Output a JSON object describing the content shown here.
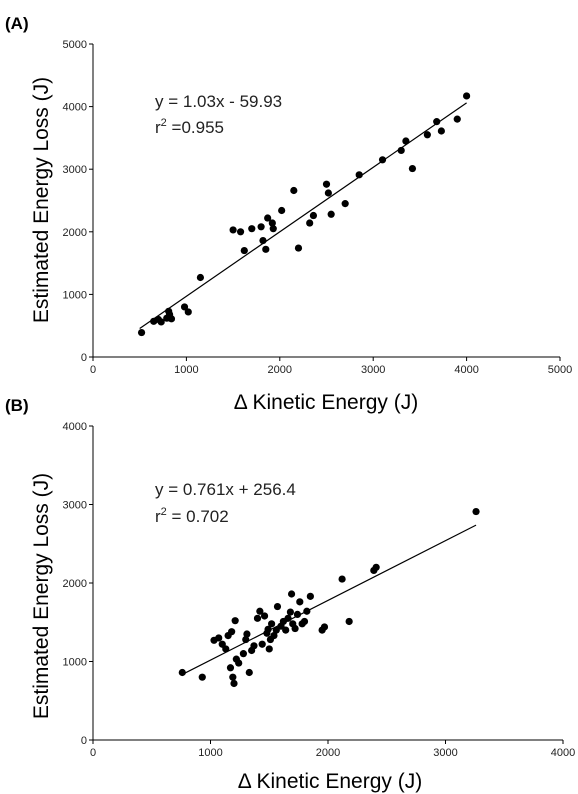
{
  "chart_data": [
    {
      "panel": "(A)",
      "type": "scatter",
      "xlabel": "Δ Kinetic Energy (J)",
      "ylabel": "Estimated Energy Loss (J)",
      "xlim": [
        0,
        5000
      ],
      "ylim": [
        0,
        5000
      ],
      "xticks": [
        "0",
        "1000",
        "2000",
        "3000",
        "4000",
        "5000"
      ],
      "yticks": [
        "0",
        "1000",
        "2000",
        "3000",
        "4000",
        "5000"
      ],
      "grid": false,
      "annotation_line1": "y = 1.03x - 59.93",
      "annotation_line2_prefix": "r",
      "annotation_line2_sup": "2",
      "annotation_line2_suffix": " =0.955",
      "fit": {
        "slope": 1.03,
        "intercept": -59.93,
        "x_from": 500,
        "x_to": 4000
      },
      "points": [
        [
          520,
          390
        ],
        [
          650,
          570
        ],
        [
          700,
          600
        ],
        [
          730,
          560
        ],
        [
          790,
          620
        ],
        [
          810,
          730
        ],
        [
          820,
          680
        ],
        [
          830,
          620
        ],
        [
          840,
          610
        ],
        [
          980,
          800
        ],
        [
          1020,
          720
        ],
        [
          1150,
          1270
        ],
        [
          1500,
          2030
        ],
        [
          1580,
          2000
        ],
        [
          1620,
          1700
        ],
        [
          1700,
          2050
        ],
        [
          1800,
          2080
        ],
        [
          1820,
          1860
        ],
        [
          1850,
          1720
        ],
        [
          1870,
          2220
        ],
        [
          1920,
          2140
        ],
        [
          1930,
          2050
        ],
        [
          2020,
          2340
        ],
        [
          2150,
          2660
        ],
        [
          2200,
          1740
        ],
        [
          2320,
          2140
        ],
        [
          2360,
          2260
        ],
        [
          2500,
          2760
        ],
        [
          2520,
          2620
        ],
        [
          2550,
          2280
        ],
        [
          2700,
          2450
        ],
        [
          2850,
          2910
        ],
        [
          3100,
          3150
        ],
        [
          3300,
          3300
        ],
        [
          3350,
          3450
        ],
        [
          3420,
          3010
        ],
        [
          3580,
          3550
        ],
        [
          3680,
          3760
        ],
        [
          3730,
          3610
        ],
        [
          3900,
          3800
        ],
        [
          4000,
          4170
        ]
      ]
    },
    {
      "panel": "(B)",
      "type": "scatter",
      "xlabel": "Δ Kinetic Energy (J)",
      "ylabel": "Estimated Energy Loss (J)",
      "xlim": [
        0,
        4000
      ],
      "ylim": [
        0,
        4000
      ],
      "xticks": [
        "0",
        "1000",
        "2000",
        "3000",
        "4000"
      ],
      "yticks": [
        "0",
        "1000",
        "2000",
        "3000",
        "4000"
      ],
      "grid": false,
      "annotation_line1": "y = 0.761x + 256.4",
      "annotation_line2_prefix": "r",
      "annotation_line2_sup": "2",
      "annotation_line2_suffix": " = 0.702",
      "fit": {
        "slope": 0.761,
        "intercept": 256.4,
        "x_from": 760,
        "x_to": 3260
      },
      "points": [
        [
          760,
          860
        ],
        [
          930,
          800
        ],
        [
          1030,
          1270
        ],
        [
          1070,
          1300
        ],
        [
          1100,
          1220
        ],
        [
          1130,
          1160
        ],
        [
          1150,
          1330
        ],
        [
          1170,
          920
        ],
        [
          1180,
          1380
        ],
        [
          1190,
          800
        ],
        [
          1200,
          720
        ],
        [
          1210,
          1520
        ],
        [
          1220,
          1030
        ],
        [
          1240,
          980
        ],
        [
          1280,
          1100
        ],
        [
          1300,
          1280
        ],
        [
          1310,
          1350
        ],
        [
          1330,
          860
        ],
        [
          1350,
          1140
        ],
        [
          1370,
          1200
        ],
        [
          1400,
          1550
        ],
        [
          1420,
          1640
        ],
        [
          1440,
          1220
        ],
        [
          1460,
          1580
        ],
        [
          1480,
          1360
        ],
        [
          1490,
          1410
        ],
        [
          1500,
          1160
        ],
        [
          1510,
          1280
        ],
        [
          1520,
          1480
        ],
        [
          1540,
          1330
        ],
        [
          1560,
          1400
        ],
        [
          1570,
          1700
        ],
        [
          1600,
          1450
        ],
        [
          1620,
          1510
        ],
        [
          1640,
          1400
        ],
        [
          1660,
          1550
        ],
        [
          1680,
          1630
        ],
        [
          1690,
          1860
        ],
        [
          1700,
          1480
        ],
        [
          1720,
          1420
        ],
        [
          1740,
          1600
        ],
        [
          1760,
          1760
        ],
        [
          1780,
          1480
        ],
        [
          1800,
          1510
        ],
        [
          1820,
          1640
        ],
        [
          1850,
          1830
        ],
        [
          1950,
          1400
        ],
        [
          1970,
          1440
        ],
        [
          2120,
          2050
        ],
        [
          2180,
          1510
        ],
        [
          2390,
          2160
        ],
        [
          2410,
          2200
        ],
        [
          3260,
          2910
        ]
      ]
    }
  ]
}
